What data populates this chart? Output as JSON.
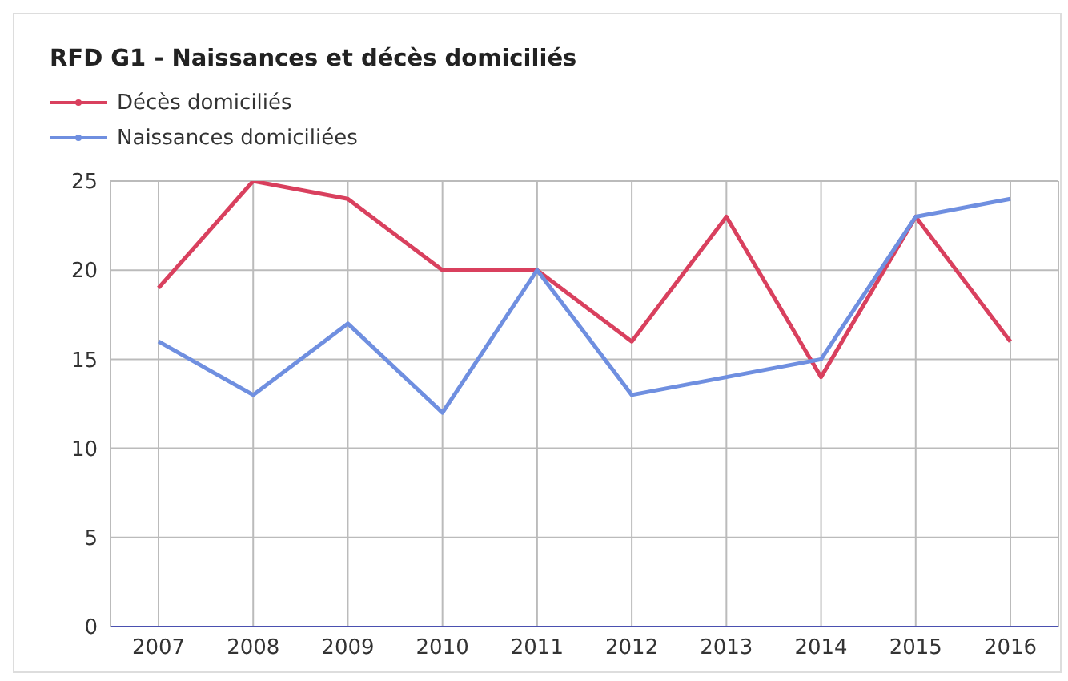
{
  "chart_data": {
    "type": "line",
    "title": "RFD G1 - Naissances et décès domiciliés",
    "categories": [
      "2007",
      "2008",
      "2009",
      "2010",
      "2011",
      "2012",
      "2013",
      "2014",
      "2015",
      "2016"
    ],
    "series": [
      {
        "name": "Décès domiciliés",
        "color": "#d9405e",
        "values": [
          19,
          25,
          24,
          20,
          20,
          16,
          23,
          14,
          23,
          16
        ]
      },
      {
        "name": "Naissances domiciliées",
        "color": "#6f8fe0",
        "values": [
          16,
          13,
          17,
          12,
          20,
          13,
          14,
          15,
          23,
          24
        ]
      }
    ],
    "ylim": [
      0,
      25
    ],
    "yticks": [
      0,
      5,
      10,
      15,
      20,
      25
    ],
    "grid": true,
    "legend": "top left",
    "marker": "none",
    "line_style": "solid"
  }
}
